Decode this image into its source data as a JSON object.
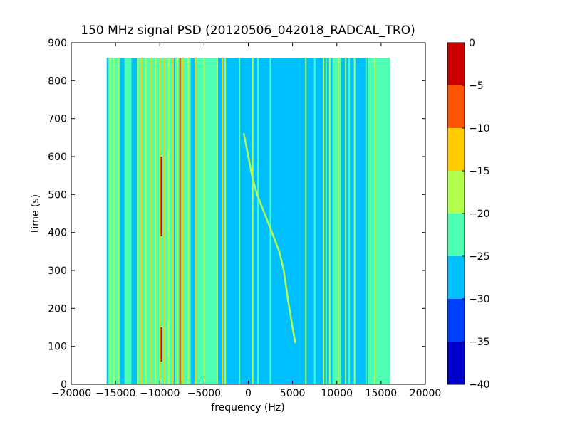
{
  "chart_data": {
    "type": "heatmap",
    "title": "150 MHz signal PSD (20120506_042018_RADCAL_TRO)",
    "xlabel": "frequency (Hz)",
    "ylabel": "time (s)",
    "xlim": [
      -20000,
      20000
    ],
    "ylim": [
      0,
      900
    ],
    "xticks": [
      -20000,
      -15000,
      -10000,
      -5000,
      0,
      5000,
      10000,
      15000,
      20000
    ],
    "xtick_labels": [
      "−20000",
      "−15000",
      "−10000",
      "−5000",
      "0",
      "5000",
      "10000",
      "15000",
      "20000"
    ],
    "yticks": [
      0,
      100,
      200,
      300,
      400,
      500,
      600,
      700,
      800,
      900
    ],
    "ytick_labels": [
      "0",
      "100",
      "200",
      "300",
      "400",
      "500",
      "600",
      "700",
      "800",
      "900"
    ],
    "data_extent": {
      "freq": [
        -16000,
        16000
      ],
      "time": [
        0,
        860
      ]
    },
    "background_level": -27.5,
    "colorbar": {
      "levels": [
        -40,
        -35,
        -30,
        -25,
        -20,
        -15,
        -10,
        -5,
        0
      ],
      "tick_labels": [
        "−40",
        "−35",
        "−30",
        "−25",
        "−20",
        "−15",
        "−10",
        "−5",
        "0"
      ],
      "colors": [
        "#0000cc",
        "#0040ff",
        "#00bfff",
        "#4dffb3",
        "#b3ff4d",
        "#ffcc00",
        "#ff5500",
        "#cc0000"
      ]
    },
    "features": [
      {
        "type": "band",
        "freq_start": -16000,
        "freq_end": 16000,
        "level": -27.5,
        "role": "background"
      },
      {
        "type": "band",
        "freq_start": -15800,
        "freq_end": -14500,
        "level": -22.5
      },
      {
        "type": "band",
        "freq_start": -14000,
        "freq_end": -13200,
        "level": -22.5
      },
      {
        "type": "band",
        "freq_start": -12500,
        "freq_end": -8500,
        "level": -22.5
      },
      {
        "type": "band",
        "freq_start": -8300,
        "freq_end": -6500,
        "level": -22.5
      },
      {
        "type": "band",
        "freq_start": -6000,
        "freq_end": -3500,
        "level": -22.5
      },
      {
        "type": "band",
        "freq_start": 9500,
        "freq_end": 10500,
        "level": -22.5
      },
      {
        "type": "band",
        "freq_start": 13500,
        "freq_end": 16000,
        "level": -22.5
      },
      {
        "type": "line",
        "freq": -15600,
        "level": -17.5
      },
      {
        "type": "line",
        "freq": -15200,
        "level": -17.5
      },
      {
        "type": "line",
        "freq": -14700,
        "level": -17.5
      },
      {
        "type": "line",
        "freq": -12500,
        "level": -17.5
      },
      {
        "type": "line",
        "freq": -12100,
        "level": -12.5
      },
      {
        "type": "line",
        "freq": -11600,
        "level": -17.5
      },
      {
        "type": "line",
        "freq": -11000,
        "level": -12.5
      },
      {
        "type": "line",
        "freq": -10500,
        "level": -17.5
      },
      {
        "type": "line",
        "freq": -10000,
        "level": -12.5
      },
      {
        "type": "line",
        "freq": -9800,
        "level": -2.5,
        "time_start": 60,
        "time_end": 150
      },
      {
        "type": "line",
        "freq": -9800,
        "level": -2.5,
        "time_start": 390,
        "time_end": 600
      },
      {
        "type": "line",
        "freq": -9500,
        "level": -12.5
      },
      {
        "type": "line",
        "freq": -9000,
        "level": -17.5
      },
      {
        "type": "line",
        "freq": -8500,
        "level": -12.5
      },
      {
        "type": "line",
        "freq": -8000,
        "level": -17.5
      },
      {
        "type": "line",
        "freq": -7700,
        "level": -7.5
      },
      {
        "type": "line",
        "freq": -7400,
        "level": -12.5
      },
      {
        "type": "line",
        "freq": -6800,
        "level": -17.5
      },
      {
        "type": "line",
        "freq": -6000,
        "level": -12.5
      },
      {
        "type": "line",
        "freq": -5000,
        "level": -17.5
      },
      {
        "type": "line",
        "freq": -3500,
        "level": -17.5
      },
      {
        "type": "line",
        "freq": -2900,
        "level": -12.5
      },
      {
        "type": "line",
        "freq": -2600,
        "level": -17.5
      },
      {
        "type": "line",
        "freq": -1000,
        "level": -22.5
      },
      {
        "type": "line",
        "freq": 500,
        "level": -17.5
      },
      {
        "type": "line",
        "freq": 1100,
        "level": -22.5
      },
      {
        "type": "line",
        "freq": 2500,
        "level": -22.5
      },
      {
        "type": "line",
        "freq": 6500,
        "level": -17.5
      },
      {
        "type": "line",
        "freq": 7500,
        "level": -22.5
      },
      {
        "type": "line",
        "freq": 8500,
        "level": -17.5
      },
      {
        "type": "line",
        "freq": 8800,
        "level": -22.5
      },
      {
        "type": "line",
        "freq": 9200,
        "level": -17.5
      },
      {
        "type": "line",
        "freq": 10200,
        "level": -17.5
      },
      {
        "type": "line",
        "freq": 11000,
        "level": -17.5
      },
      {
        "type": "line",
        "freq": 11400,
        "level": -22.5
      },
      {
        "type": "line",
        "freq": 12000,
        "level": -17.5
      },
      {
        "type": "line",
        "freq": 13300,
        "level": -22.5
      },
      {
        "type": "line",
        "freq": 14300,
        "level": -17.5
      }
    ],
    "chirp": {
      "level": -17.5,
      "points": [
        [
          -500,
          660
        ],
        [
          0,
          600
        ],
        [
          500,
          540
        ],
        [
          1000,
          500
        ],
        [
          1500,
          470
        ],
        [
          2000,
          440
        ],
        [
          2500,
          410
        ],
        [
          3000,
          380
        ],
        [
          3500,
          350
        ],
        [
          4000,
          300
        ],
        [
          4500,
          220
        ],
        [
          5000,
          150
        ],
        [
          5300,
          110
        ]
      ]
    }
  }
}
